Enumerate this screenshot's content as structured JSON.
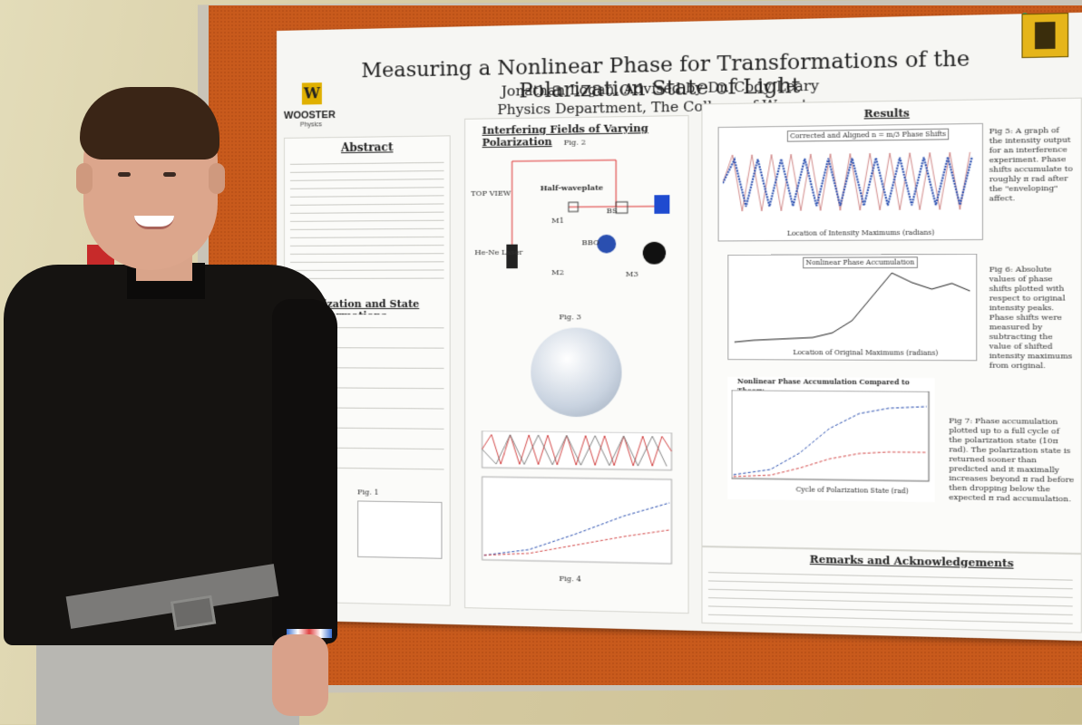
{
  "scene": "Student posing next to a research poster on a cork board",
  "poster": {
    "title": "Measuring a Nonlinear Phase for Transformations of the Polarization State of Light",
    "author": "Jonathan Logan, Advised by Dr. Cody Leary",
    "department": "Physics Department, The College of Wooster",
    "logo_text": "WOOSTER",
    "logo_sub": "Physics",
    "logo_letter": "W",
    "sections": {
      "abstract": "Abstract",
      "polarization": "Polarization and State Transformations",
      "interfering": "Interfering Fields of Varying Polarization",
      "results": "Results",
      "remarks": "Remarks and Acknowledgements",
      "fig1": "Fig. 1",
      "fig2": "Fig. 2",
      "fig3": "Fig. 3",
      "fig4": "Fig. 4"
    },
    "setup_labels": {
      "top_view": "TOP VIEW",
      "laser": "He-Ne Laser",
      "waveplate": "Half-waveplate",
      "bs": "BS",
      "bbo": "BBO",
      "m1": "M1",
      "m2": "M2",
      "m3": "M3"
    },
    "plot_titles": {
      "p1": "Corrected and Aligned n = m/3 Phase Shifts",
      "p2": "Nonlinear Phase Accumulation",
      "p3": "Nonlinear Phase Accumulation Compared to Theory"
    },
    "plot_axes": {
      "p1_x": "Location of Intensity Maximums (radians)",
      "p2_x": "Location of Original Maximums (radians)",
      "p3_x": "Cycle of Polarization State (rad)"
    },
    "captions": {
      "fig5": "Fig 5: A graph of the intensity output for an interference experiment. Phase shifts accumulate to roughly π rad after the \"enveloping\" affect.",
      "fig6": "Fig 6: Absolute values of phase shifts plotted with respect to original intensity peaks. Phase shifts were measured by subtracting the value of shifted intensity maximums from original.",
      "fig7": "Fig 7: Phase accumulation plotted up to a full cycle of the polarization state (10π rad). The polarization state is returned sooner than predicted and it maximally increases beyond π rad before then dropping below the expected π rad accumulation."
    }
  },
  "colors": {
    "cork": "#c85a1c",
    "poster_bg": "#f6f6f3",
    "shirt": "#151311",
    "pants": "#b8b7b2",
    "wall": "#d8cfaa",
    "plot_blue": "#2a4fb0",
    "plot_red": "#d44a4a"
  }
}
